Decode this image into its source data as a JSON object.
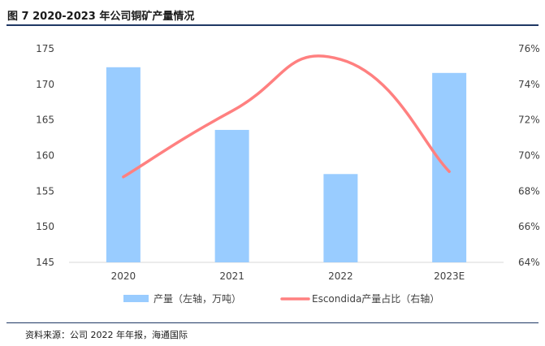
{
  "header": {
    "title": "图 7 2020-2023 年公司铜矿产量情况"
  },
  "footer": {
    "source": "资料来源：公司 2022 年年报，海通国际"
  },
  "chart_data": {
    "type": "bar",
    "categories": [
      "2020",
      "2021",
      "2022",
      "2023E"
    ],
    "series": [
      {
        "name": "产量（左轴，万吨）",
        "type": "bar",
        "axis": "left",
        "values": [
          172.4,
          163.6,
          157.4,
          171.6
        ],
        "color": "#99ccff"
      },
      {
        "name": "Escondida产量占比（右轴）",
        "type": "line",
        "axis": "right",
        "values": [
          68.8,
          72.5,
          75.4,
          69.1
        ],
        "color": "#ff8080"
      }
    ],
    "y_left": {
      "min": 145,
      "max": 175,
      "ticks": [
        "145",
        "150",
        "155",
        "160",
        "165",
        "170",
        "175"
      ]
    },
    "y_right": {
      "min": 64,
      "max": 76,
      "ticks": [
        "64%",
        "66%",
        "68%",
        "70%",
        "72%",
        "74%",
        "76%"
      ]
    },
    "legend_position": "bottom",
    "grid": false
  }
}
